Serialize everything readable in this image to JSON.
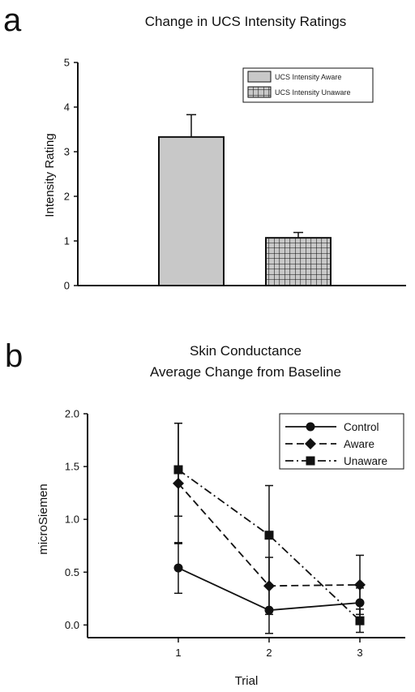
{
  "panels": {
    "a": "a",
    "b": "b"
  },
  "chart_data": [
    {
      "type": "bar",
      "title": "Change in UCS Intensity Ratings",
      "xlabel": "",
      "ylabel": "Intensity Rating",
      "ylim": [
        0,
        5
      ],
      "yticks": [
        "0",
        "1",
        "2",
        "3",
        "4",
        "5"
      ],
      "grid": false,
      "legend_position": "top-right",
      "series": [
        {
          "name": "UCS Intensity Aware",
          "value": 3.33,
          "error": 0.5,
          "fill": "#c8c8c8",
          "pattern": "solid"
        },
        {
          "name": "UCS Intensity Unaware",
          "value": 1.07,
          "error": 0.12,
          "fill": "#c8c8c8",
          "pattern": "grid"
        }
      ]
    },
    {
      "type": "line",
      "title": [
        "Skin Conductance",
        "Average Change from Baseline"
      ],
      "xlabel": "Trial",
      "ylabel": "microSiemen",
      "x": [
        1,
        2,
        3
      ],
      "xticks": [
        "1",
        "2",
        "3"
      ],
      "xlim": [
        0.0,
        3.5
      ],
      "ylim": [
        -0.12,
        2.0
      ],
      "yticks": [
        "0.0",
        "0.5",
        "1.0",
        "1.5",
        "2.0"
      ],
      "grid": false,
      "legend_position": "top-right",
      "series": [
        {
          "name": "Control",
          "values": [
            0.54,
            0.14,
            0.21
          ],
          "errors": [
            0.24,
            0.22,
            0.14
          ],
          "marker": "circle",
          "dash": "solid"
        },
        {
          "name": "Aware",
          "values": [
            1.34,
            0.37,
            0.38
          ],
          "errors": [
            0.57,
            0.27,
            0.28
          ],
          "marker": "diamond",
          "dash": "dashed"
        },
        {
          "name": "Unaware",
          "values": [
            1.47,
            0.85,
            0.04
          ],
          "errors": [
            0.44,
            0.47,
            0.11
          ],
          "marker": "square",
          "dash": "dashdot"
        }
      ]
    }
  ]
}
